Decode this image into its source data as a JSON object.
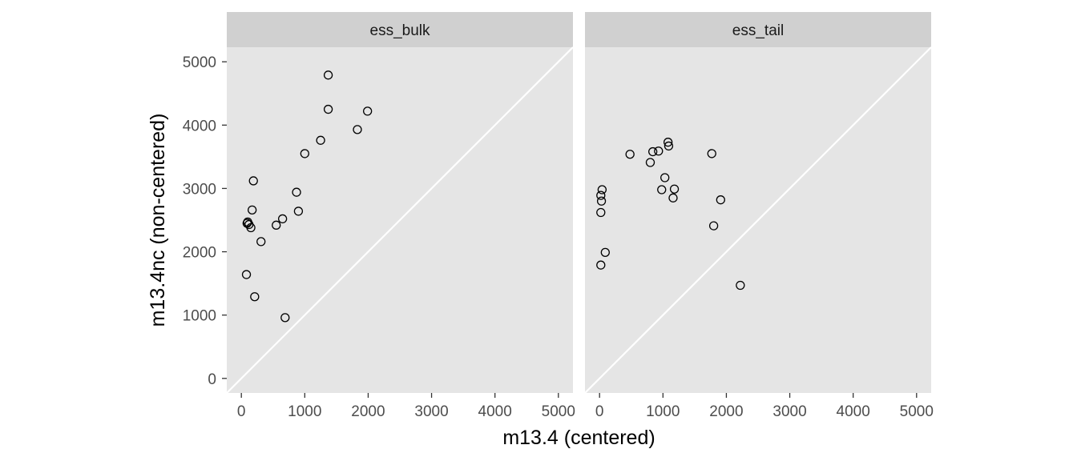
{
  "chart_data": {
    "type": "scatter",
    "xlabel": "m13.4 (centered)",
    "ylabel": "m13.4nc (non-centered)",
    "xlim": [
      -230,
      5230
    ],
    "ylim": [
      -230,
      5230
    ],
    "x_ticks": [
      0,
      1000,
      2000,
      3000,
      4000,
      5000
    ],
    "y_ticks": [
      0,
      1000,
      2000,
      3000,
      4000,
      5000
    ],
    "x_tick_labels": [
      "0",
      "1000",
      "2000",
      "3000",
      "4000",
      "5000"
    ],
    "y_tick_labels": [
      "0",
      "1000",
      "2000",
      "3000",
      "4000",
      "5000"
    ],
    "reference_line": "y = x",
    "grid": false,
    "colors": {
      "panel_bg": "#e5e5e5",
      "strip_bg": "#d0d0d0",
      "point_stroke": "#000000",
      "ref_line": "#ffffff"
    },
    "facets": [
      {
        "label": "ess_bulk",
        "points": [
          {
            "x": 1370,
            "y": 4790
          },
          {
            "x": 1370,
            "y": 4250
          },
          {
            "x": 1990,
            "y": 4220
          },
          {
            "x": 1830,
            "y": 3930
          },
          {
            "x": 1250,
            "y": 3760
          },
          {
            "x": 1000,
            "y": 3550
          },
          {
            "x": 190,
            "y": 3120
          },
          {
            "x": 870,
            "y": 2940
          },
          {
            "x": 170,
            "y": 2660
          },
          {
            "x": 900,
            "y": 2640
          },
          {
            "x": 650,
            "y": 2520
          },
          {
            "x": 100,
            "y": 2470
          },
          {
            "x": 90,
            "y": 2450
          },
          {
            "x": 120,
            "y": 2430
          },
          {
            "x": 550,
            "y": 2420
          },
          {
            "x": 150,
            "y": 2380
          },
          {
            "x": 310,
            "y": 2160
          },
          {
            "x": 80,
            "y": 1640
          },
          {
            "x": 210,
            "y": 1290
          },
          {
            "x": 690,
            "y": 960
          }
        ]
      },
      {
        "label": "ess_tail",
        "points": [
          {
            "x": 1080,
            "y": 3730
          },
          {
            "x": 1090,
            "y": 3670
          },
          {
            "x": 840,
            "y": 3580
          },
          {
            "x": 930,
            "y": 3590
          },
          {
            "x": 480,
            "y": 3540
          },
          {
            "x": 1770,
            "y": 3550
          },
          {
            "x": 800,
            "y": 3410
          },
          {
            "x": 1030,
            "y": 3170
          },
          {
            "x": 40,
            "y": 2980
          },
          {
            "x": 980,
            "y": 2980
          },
          {
            "x": 1180,
            "y": 2990
          },
          {
            "x": 20,
            "y": 2890
          },
          {
            "x": 1160,
            "y": 2850
          },
          {
            "x": 1910,
            "y": 2820
          },
          {
            "x": 30,
            "y": 2800
          },
          {
            "x": 20,
            "y": 2620
          },
          {
            "x": 1800,
            "y": 2410
          },
          {
            "x": 90,
            "y": 1990
          },
          {
            "x": 20,
            "y": 1790
          },
          {
            "x": 2220,
            "y": 1470
          }
        ]
      }
    ]
  }
}
